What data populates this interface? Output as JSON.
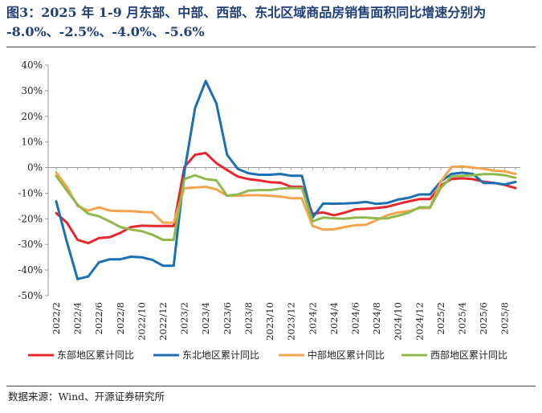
{
  "figure": {
    "title": "图3：2025 年 1-9 月东部、中部、西部、东北区域商品房销售面积同比增速分别为 -8.0%、-2.5%、-4.0%、-5.6%",
    "source": "数据来源：Wind、开源证券研究所"
  },
  "chart_data": {
    "type": "line",
    "x": [
      "2022/2",
      "2022/3",
      "2022/4",
      "2022/5",
      "2022/6",
      "2022/7",
      "2022/8",
      "2022/9",
      "2022/10",
      "2022/11",
      "2022/12",
      "2023/1",
      "2023/2",
      "2023/3",
      "2023/4",
      "2023/5",
      "2023/6",
      "2023/7",
      "2023/8",
      "2023/9",
      "2023/10",
      "2023/11",
      "2023/12",
      "2024/1",
      "2024/2",
      "2024/3",
      "2024/4",
      "2024/5",
      "2024/6",
      "2024/7",
      "2024/8",
      "2024/9",
      "2024/10",
      "2024/11",
      "2024/12",
      "2025/1",
      "2025/2",
      "2025/3",
      "2025/4",
      "2025/5",
      "2025/6",
      "2025/7",
      "2025/8",
      "2025/9"
    ],
    "x_tick_labels": [
      "2022/2",
      "2022/4",
      "2022/6",
      "2022/8",
      "2022/10",
      "2022/12",
      "2023/2",
      "2023/4",
      "2023/6",
      "2023/8",
      "2023/10",
      "2023/12",
      "2024/2",
      "2024/4",
      "2024/6",
      "2024/8",
      "2024/10",
      "2024/12",
      "2025/2",
      "2025/4",
      "2025/6",
      "2025/8"
    ],
    "y_ticks": [
      40,
      30,
      20,
      10,
      0,
      -10,
      -20,
      -30,
      -40,
      -50
    ],
    "y_tick_labels": [
      "40%",
      "30%",
      "20%",
      "10%",
      "0%",
      "-10%",
      "-20%",
      "-30%",
      "-40%",
      "-50%"
    ],
    "ylim": [
      -50,
      40
    ],
    "unit": "%",
    "grid": false,
    "legend_position": "bottom",
    "series": [
      {
        "name": "东部地区累计同比",
        "color": "#e8262d",
        "values": [
          -17.8,
          -21.5,
          -28.2,
          -29.5,
          -27.5,
          -27.2,
          -25.5,
          -23.2,
          -22.7,
          -22.8,
          -22.8,
          -22.8,
          0.2,
          5.0,
          5.7,
          1.7,
          -1.0,
          -3.5,
          -4.5,
          -5.0,
          -5.7,
          -5.9,
          -7.5,
          -7.5,
          -18.0,
          -17.5,
          -18.6,
          -17.6,
          -16.3,
          -16.1,
          -15.8,
          -15.3,
          -14.2,
          -13.2,
          -12.3,
          -12.3,
          -7.0,
          -4.5,
          -4.2,
          -4.5,
          -5.5,
          -6.0,
          -6.8,
          -8.0
        ]
      },
      {
        "name": "东北地区累计同比",
        "color": "#1b6fb5",
        "values": [
          -13.2,
          -29.0,
          -43.5,
          -42.5,
          -37.0,
          -35.8,
          -35.8,
          -34.8,
          -35.0,
          -36.0,
          -38.3,
          -38.3,
          -1.7,
          23.2,
          33.8,
          25.0,
          5.0,
          -0.5,
          -2.2,
          -2.8,
          -2.8,
          -2.5,
          -3.2,
          -3.2,
          -19.5,
          -14.0,
          -14.1,
          -14.0,
          -13.8,
          -13.4,
          -14.2,
          -13.8,
          -12.5,
          -11.8,
          -10.5,
          -10.5,
          -5.4,
          -2.5,
          -2.0,
          -2.5,
          -6.0,
          -6.0,
          -6.6,
          -5.6
        ]
      },
      {
        "name": "中部地区累计同比",
        "color": "#f4a54c",
        "values": [
          -1.9,
          -7.5,
          -15.0,
          -16.8,
          -15.5,
          -16.8,
          -17.0,
          -17.0,
          -17.3,
          -17.5,
          -21.5,
          -21.5,
          -8.0,
          -7.8,
          -7.5,
          -8.5,
          -11.0,
          -11.0,
          -10.8,
          -10.8,
          -11.0,
          -11.3,
          -12.0,
          -12.0,
          -22.8,
          -24.2,
          -24.1,
          -23.2,
          -22.5,
          -22.3,
          -20.5,
          -18.6,
          -17.5,
          -17.0,
          -15.8,
          -15.8,
          -5.5,
          0.2,
          0.5,
          0.0,
          -0.5,
          -1.2,
          -1.5,
          -2.5
        ]
      },
      {
        "name": "西部地区累计同比",
        "color": "#90b84d",
        "values": [
          -3.3,
          -9.0,
          -14.5,
          -18.0,
          -19.0,
          -21.0,
          -23.2,
          -24.2,
          -24.8,
          -26.2,
          -28.2,
          -28.2,
          -4.5,
          -3.0,
          -4.5,
          -5.0,
          -11.0,
          -10.5,
          -9.0,
          -8.8,
          -8.8,
          -8.2,
          -8.0,
          -8.0,
          -21.0,
          -19.5,
          -19.8,
          -20.0,
          -19.5,
          -19.5,
          -19.8,
          -19.8,
          -18.8,
          -17.6,
          -15.5,
          -15.5,
          -8.0,
          -3.5,
          -3.2,
          -3.0,
          -2.6,
          -2.6,
          -3.0,
          -4.0
        ]
      }
    ]
  }
}
